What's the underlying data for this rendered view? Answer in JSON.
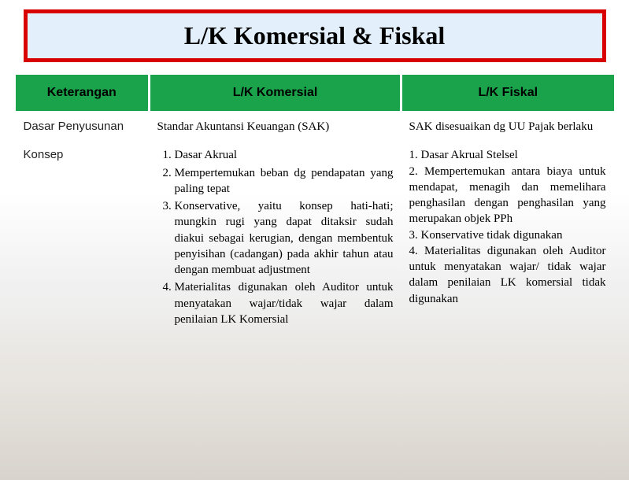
{
  "title": {
    "text": "L/K Komersial & Fiskal",
    "border_color": "#d80000",
    "bg_color": "#e3f0fb",
    "text_color": "#000000"
  },
  "header": {
    "bg_color": "#1aa34a",
    "text_color": "#000000",
    "col0": "Keterangan",
    "col1": "L/K Komersial",
    "col2": "L/K Fiskal"
  },
  "rows": {
    "dasar": {
      "label": "Dasar Penyusunan",
      "komersial": "Standar Akuntansi Keuangan (SAK)",
      "fiskal": "SAK disesuaikan dg UU Pajak berlaku"
    },
    "konsep": {
      "label": "Konsep",
      "komersial_items": [
        "Dasar Akrual",
        "Mempertemukan beban dg pendapatan yang paling tepat",
        "Konservative, yaitu konsep hati-hati; mungkin rugi yang dapat ditaksir sudah diakui sebagai kerugian, dengan membentuk penyisihan (cadangan) pada akhir tahun atau dengan membuat adjustment",
        "Materialitas digunakan oleh Auditor untuk menyatakan wajar/tidak wajar dalam penilaian LK Komersial"
      ],
      "fiskal": "1. Dasar Akrual Stelsel\n2. Mempertemukan antara biaya untuk mendapat, menagih dan memelihara penghasilan dengan penghasilan yang merupakan objek PPh\n3. Konservative tidak digunakan\n4. Materialitas digunakan oleh Auditor untuk menyatakan wajar/ tidak wajar dalam penilaian LK komersial tidak digunakan"
    }
  }
}
